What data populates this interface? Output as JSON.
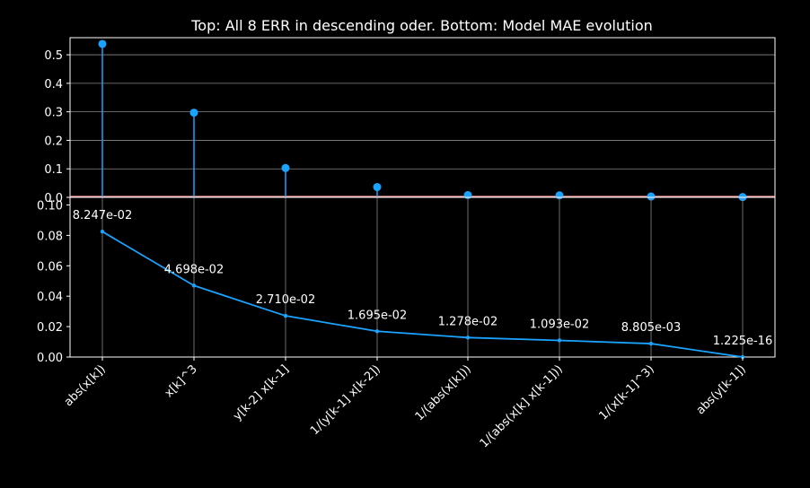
{
  "title": "Top: All 8 ERR in descending oder. Bottom: Model MAE evolution",
  "colors": {
    "background": "#000000",
    "foreground": "#ffffff",
    "series": "#1aa3ff",
    "baseline": "#ff9f9f",
    "grid": "#888888"
  },
  "chart_data": [
    {
      "type": "stem",
      "categories": [
        "abs(x[k])",
        "x[k]^3",
        "y[k-2] x[k-1]",
        "1/(y[k-1] x[k-2])",
        "1/(abs(x[k]))",
        "1/(abs(x[k] x[k-1]))",
        "1/(x[k-1]^3)",
        "abs(y[k-1])"
      ],
      "values": [
        0.538,
        0.297,
        0.103,
        0.036,
        0.008,
        0.007,
        0.003,
        0.001
      ],
      "ylim": [
        0,
        0.56
      ],
      "yticks": [
        0.0,
        0.1,
        0.2,
        0.3,
        0.4,
        0.5
      ],
      "ytick_labels": [
        "0.0",
        "0.1",
        "0.2",
        "0.3",
        "0.4",
        "0.5"
      ],
      "grid": "horizontal",
      "xlabel": "",
      "ylabel": ""
    },
    {
      "type": "line",
      "categories": [
        "abs(x[k])",
        "x[k]^3",
        "y[k-2] x[k-1]",
        "1/(y[k-1] x[k-2])",
        "1/(abs(x[k]))",
        "1/(abs(x[k] x[k-1]))",
        "1/(x[k-1]^3)",
        "abs(y[k-1])"
      ],
      "values": [
        0.08247,
        0.04698,
        0.0271,
        0.01695,
        0.01278,
        0.01093,
        0.008805,
        1.225e-16
      ],
      "data_labels": [
        "8.247e-02",
        "4.698e-02",
        "2.710e-02",
        "1.695e-02",
        "1.278e-02",
        "1.093e-02",
        "8.805e-03",
        "1.225e-16"
      ],
      "ylim": [
        0,
        0.105
      ],
      "yticks": [
        0.0,
        0.02,
        0.04,
        0.06,
        0.08,
        0.1
      ],
      "ytick_labels": [
        "0.00",
        "0.02",
        "0.04",
        "0.06",
        "0.08",
        "0.10"
      ],
      "grid": "vertical",
      "xlabel": "",
      "ylabel": ""
    }
  ]
}
